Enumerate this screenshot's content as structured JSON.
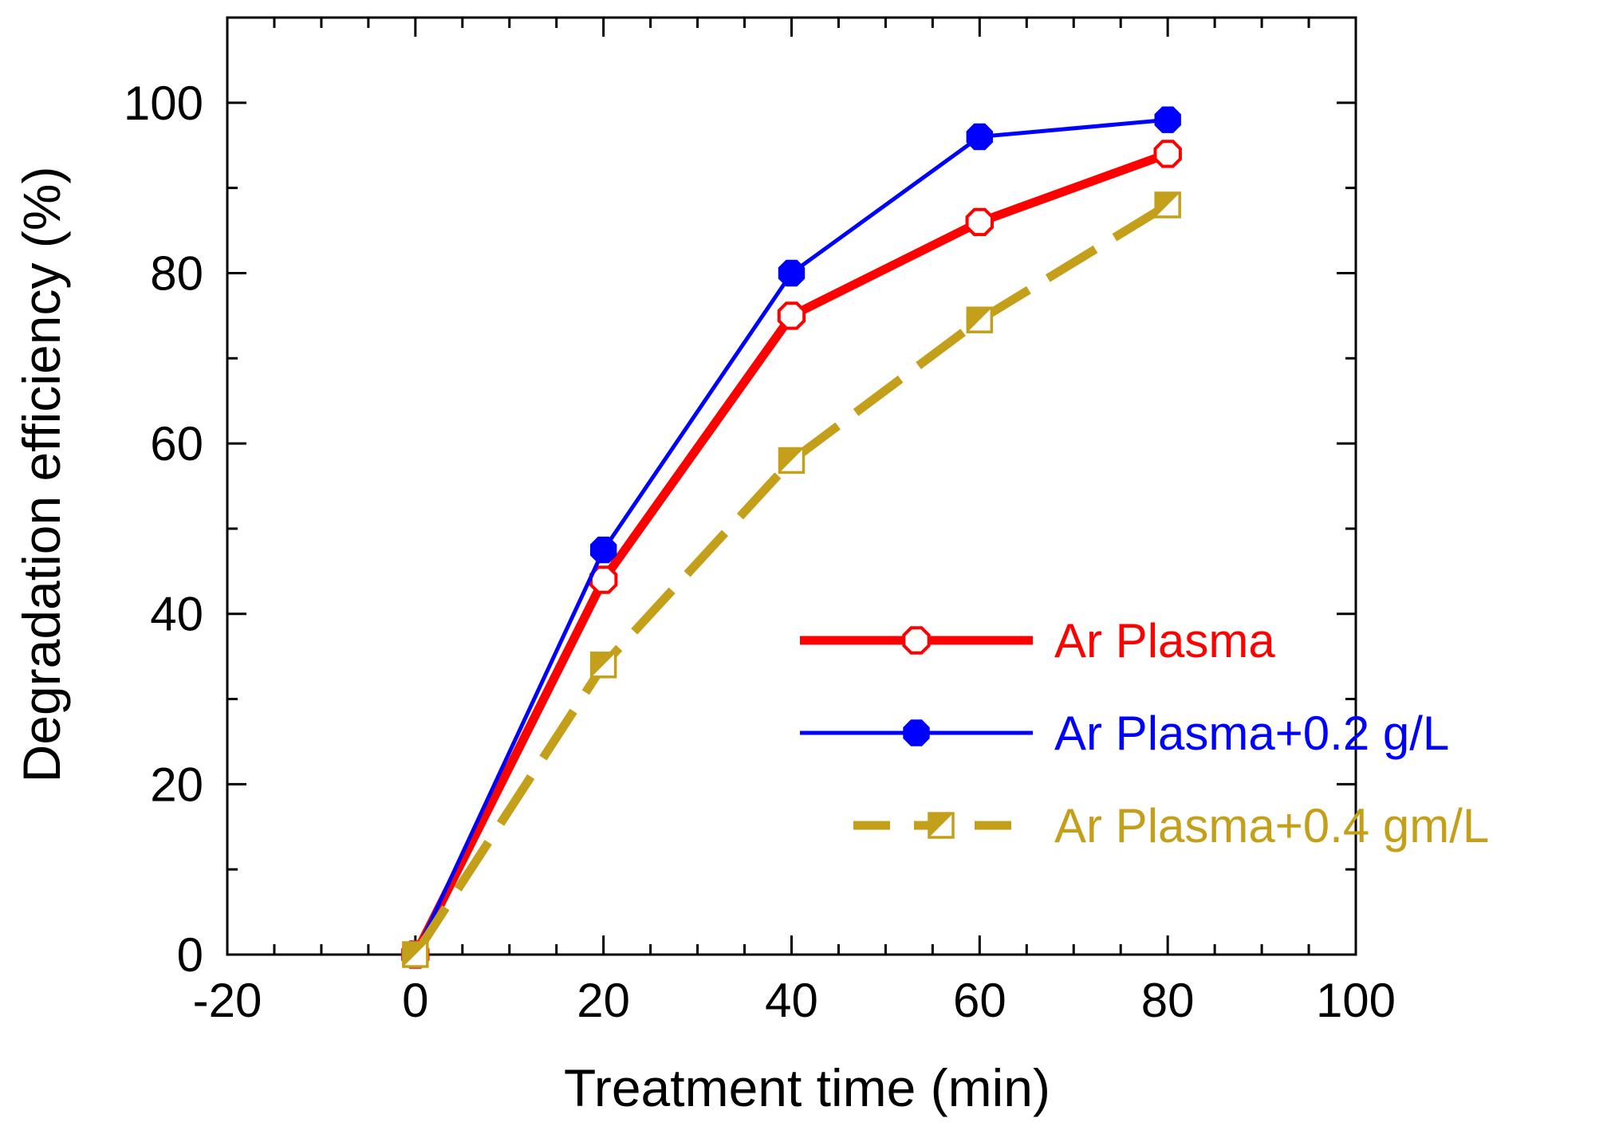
{
  "chart_data": {
    "type": "line",
    "title": "",
    "xlabel": "Treatment time (min)",
    "ylabel": "Degradation efficiency (%)",
    "xlim": [
      -20,
      100
    ],
    "ylim": [
      0,
      110
    ],
    "xticks": [
      -20,
      0,
      20,
      40,
      60,
      80,
      100
    ],
    "yticks": [
      0,
      20,
      40,
      60,
      80,
      100
    ],
    "x_tick_labels": [
      "-20",
      "0",
      "20",
      "40",
      "60",
      "80",
      "100"
    ],
    "y_tick_labels": [
      "0",
      "20",
      "40",
      "60",
      "80",
      "100"
    ],
    "x_minor_step": 5,
    "y_minor_step": 10,
    "grid": false,
    "legend_position": "center-right",
    "series": [
      {
        "name": "Ar Plasma",
        "color": "#ff0000",
        "marker": "open-octagon",
        "line": "solid-thick",
        "x": [
          0,
          20,
          40,
          60,
          80
        ],
        "y": [
          0,
          44,
          75,
          86,
          94
        ]
      },
      {
        "name": "Ar Plasma+0.2 g/L",
        "color": "#0000ff",
        "marker": "filled-octagon",
        "line": "solid",
        "x": [
          0,
          20,
          40,
          60,
          80
        ],
        "y": [
          0,
          47.5,
          80,
          96,
          98
        ]
      },
      {
        "name": "Ar Plasma+0.4 gm/L",
        "color": "#c4a01a",
        "marker": "half-filled-square",
        "line": "dashed-thick",
        "x": [
          0,
          20,
          40,
          60,
          80
        ],
        "y": [
          0,
          34,
          58,
          74.5,
          88
        ]
      }
    ]
  }
}
